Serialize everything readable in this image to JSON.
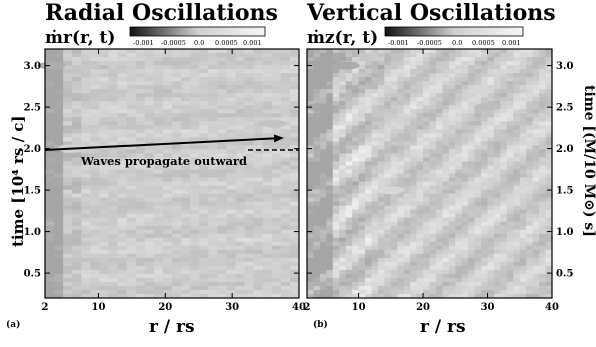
{
  "chart_data": [
    {
      "panel_id": "(a)",
      "type": "heatmap",
      "title": "Radial Oscillations",
      "subtitle": "ṁr(r, t)",
      "xlabel": "r / rs",
      "ylabel": "time [10⁴ rs / c]",
      "xlim": [
        2,
        40
      ],
      "ylim": [
        0.2,
        3.2
      ],
      "xticks": [
        2,
        10,
        20,
        30,
        40
      ],
      "yticks": [
        0.5,
        1.0,
        1.5,
        2.0,
        2.5,
        3.0
      ],
      "colorbar": {
        "ticks": [
          "-0.001",
          "-0.0005",
          "0.0",
          "0.0005",
          "0.001"
        ],
        "range": [
          -0.001,
          0.001
        ]
      },
      "annotation": {
        "text": "Waves propagate outward",
        "arrow_from": [
          2,
          1.98
        ],
        "arrow_to": [
          36.5,
          2.13
        ]
      },
      "values_sample": [
        {
          "r": 3,
          "t": 3.0,
          "v": -0.0008
        },
        {
          "r": 6,
          "t": 2.0,
          "v": 0.0002
        },
        {
          "r": 25,
          "t": 1.5,
          "v": 0.0
        },
        {
          "r": 36,
          "t": 2.3,
          "v": -0.0003
        }
      ]
    },
    {
      "panel_id": "(b)",
      "type": "heatmap",
      "title": "Vertical Oscillations",
      "subtitle": "ṁz(r, t)",
      "xlabel": "r / rs",
      "ylabel": "time [(M/10 M⊙) s]",
      "xlim": [
        2,
        40
      ],
      "ylim": [
        0.2,
        3.2
      ],
      "xticks": [
        2,
        10,
        20,
        30,
        40
      ],
      "yticks": [
        0.5,
        1.0,
        1.5,
        2.0,
        2.5,
        3.0
      ],
      "colorbar": {
        "ticks": [
          "-0.001",
          "-0.0005",
          "0.0",
          "0.0005",
          "0.001"
        ],
        "range": [
          -0.001,
          0.001
        ]
      },
      "values_sample": [
        {
          "r": 4,
          "t": 2.5,
          "v": -0.001
        },
        {
          "r": 8,
          "t": 3.0,
          "v": -0.0009
        },
        {
          "r": 15,
          "t": 1.5,
          "v": 0.0003
        },
        {
          "r": 30,
          "t": 2.5,
          "v": -0.0004
        }
      ]
    }
  ]
}
